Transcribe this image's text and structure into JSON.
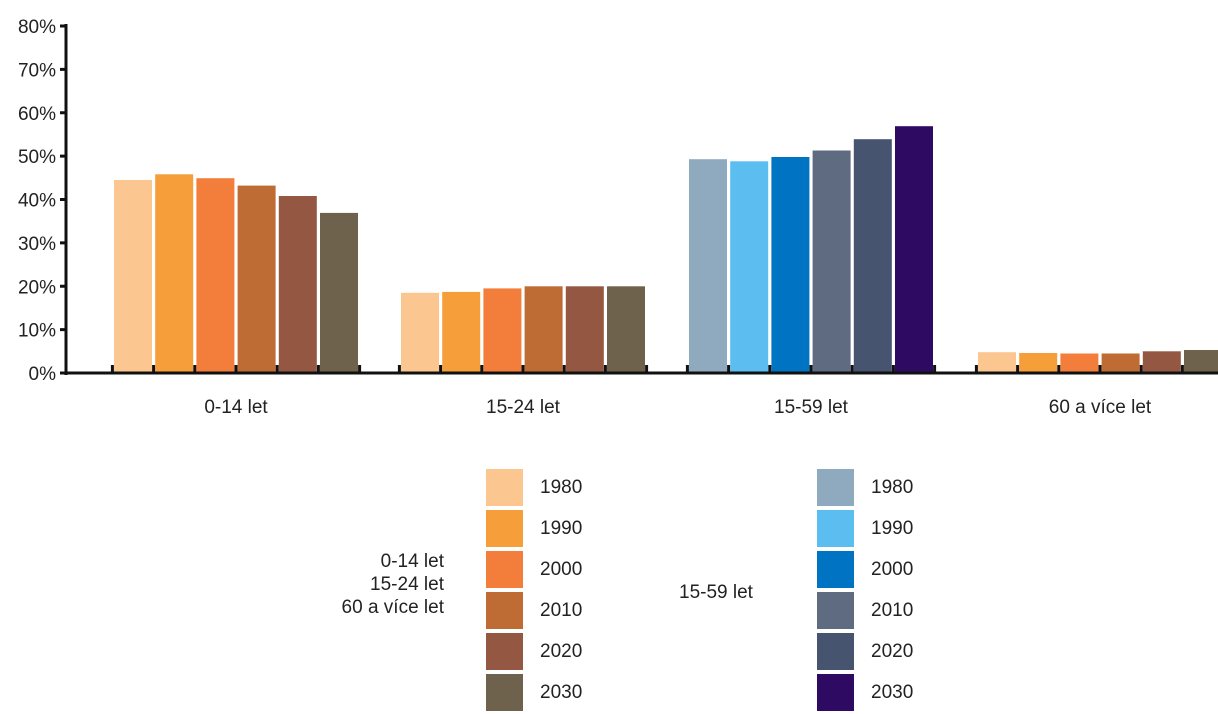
{
  "chart_data": {
    "type": "bar",
    "categories": [
      "0-14 let",
      "15-24 let",
      "15-59 let",
      "60 a více let"
    ],
    "series": [
      {
        "name": "1980",
        "values": [
          44.5,
          18.5,
          49.3,
          4.8
        ]
      },
      {
        "name": "1990",
        "values": [
          45.8,
          18.7,
          48.8,
          4.6
        ]
      },
      {
        "name": "2000",
        "values": [
          44.9,
          19.5,
          49.8,
          4.5
        ]
      },
      {
        "name": "2010",
        "values": [
          43.2,
          20.0,
          51.3,
          4.5
        ]
      },
      {
        "name": "2020",
        "values": [
          40.8,
          20.0,
          53.9,
          5.0
        ]
      },
      {
        "name": "2030",
        "values": [
          36.9,
          20.0,
          56.9,
          5.3
        ]
      }
    ],
    "y_ticks": [
      "0%",
      "10%",
      "20%",
      "30%",
      "40%",
      "50%",
      "60%",
      "70%",
      "80%"
    ],
    "ylim": [
      0,
      80
    ],
    "y_unit": "%",
    "palettes": {
      "warm": [
        "#fbc68f",
        "#f59e3a",
        "#f37e3b",
        "#bf6b34",
        "#935742",
        "#6f624c"
      ],
      "cool": [
        "#8fa9bf",
        "#5bbdf0",
        "#0074c2",
        "#5e6b80",
        "#475470",
        "#2e0a63"
      ]
    },
    "category_palette": [
      "warm",
      "warm",
      "cool",
      "warm"
    ]
  },
  "legend": {
    "warm_group_labels": [
      "0-14 let",
      "15-24 let",
      "60 a více let"
    ],
    "cool_group_labels": [
      "15-59 let"
    ],
    "years": [
      "1980",
      "1990",
      "2000",
      "2010",
      "2020",
      "2030"
    ]
  }
}
